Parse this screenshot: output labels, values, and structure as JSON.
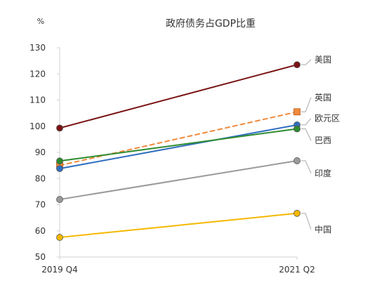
{
  "chart_data": {
    "type": "line",
    "title": "政府债务占GDP比重",
    "ylabel": "%",
    "categories": [
      "2019 Q4",
      "2021 Q2"
    ],
    "ylim": [
      50,
      130
    ],
    "yticks": [
      50,
      60,
      70,
      80,
      90,
      100,
      110,
      120,
      130
    ],
    "grid": false,
    "legend": "direct labels at line ends (right)",
    "series": [
      {
        "name": "美国",
        "values": [
          99.3,
          123.5
        ],
        "color": "#7a1414",
        "marker": "circle",
        "dashed": false
      },
      {
        "name": "英国",
        "values": [
          85.0,
          105.5
        ],
        "color": "#f08a3c",
        "marker": "square",
        "dashed": true
      },
      {
        "name": "欧元区",
        "values": [
          83.8,
          100.5
        ],
        "color": "#2f6fc0",
        "marker": "circle",
        "dashed": false
      },
      {
        "name": "巴西",
        "values": [
          86.7,
          99.0
        ],
        "color": "#2e8b2e",
        "marker": "circle",
        "dashed": false
      },
      {
        "name": "印度",
        "values": [
          72.0,
          86.8
        ],
        "color": "#9a9a9a",
        "marker": "circle",
        "dashed": false
      },
      {
        "name": "中国",
        "values": [
          57.5,
          66.7
        ],
        "color": "#f5b800",
        "marker": "circle",
        "dashed": false
      }
    ]
  }
}
